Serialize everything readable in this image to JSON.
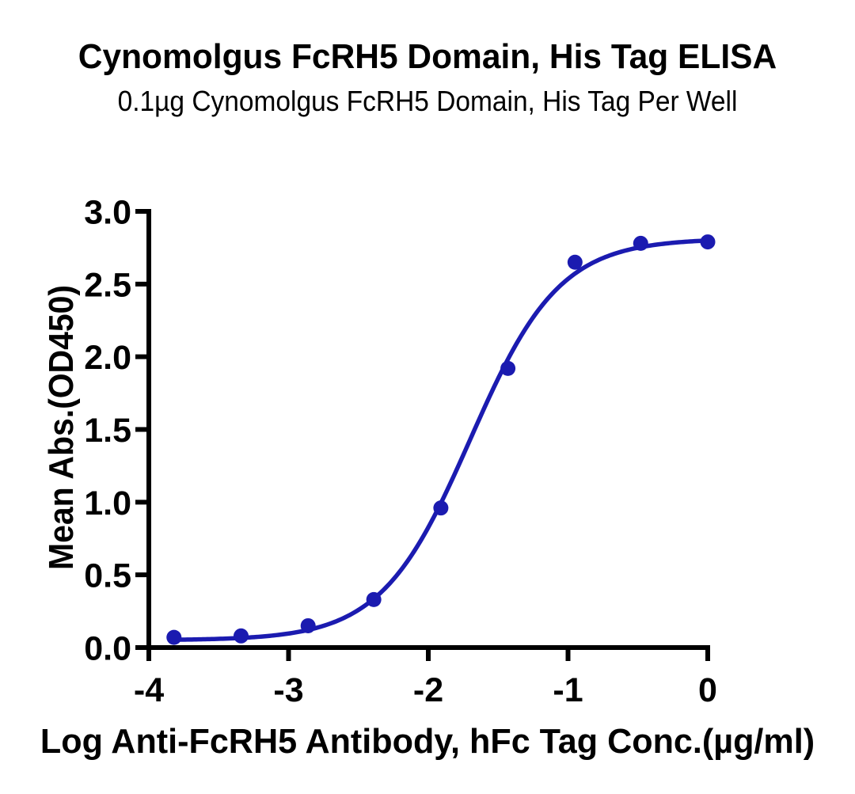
{
  "chart_data": {
    "type": "scatter",
    "title": "Cynomolgus FcRH5 Domain, His Tag ELISA",
    "subtitle": "0.1µg Cynomolgus FcRH5 Domain, His Tag Per Well",
    "xlabel": "Log Anti-FcRH5 Antibody, hFc Tag Conc.(µg/ml)",
    "ylabel": "Mean Abs.(OD450)",
    "x": [
      -3.82,
      -3.34,
      -2.86,
      -2.39,
      -1.91,
      -1.43,
      -0.95,
      -0.48,
      0
    ],
    "y": [
      0.07,
      0.08,
      0.15,
      0.33,
      0.96,
      1.92,
      2.65,
      2.78,
      2.79
    ],
    "xlim": [
      -4,
      0
    ],
    "ylim": [
      0,
      3
    ],
    "xticks": [
      -4,
      -3,
      -2,
      -1,
      0
    ],
    "yticks": [
      0,
      0.5,
      1,
      1.5,
      2,
      2.5,
      3
    ],
    "ytick_decimals": 1,
    "fit": {
      "model": "4PL",
      "bottom": 0.05,
      "top": 2.813,
      "logEC50": -1.7,
      "hill": 1.36
    },
    "colors": {
      "curve": "#1b1bb0",
      "marker": "#1b1bb0",
      "axis": "#000000",
      "text": "#000000"
    },
    "grid": false,
    "legend": null
  }
}
